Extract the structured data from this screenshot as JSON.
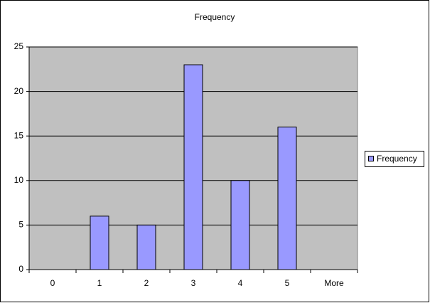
{
  "chart_data": {
    "type": "bar",
    "title": "Frequency",
    "categories": [
      "0",
      "1",
      "2",
      "3",
      "4",
      "5",
      "More"
    ],
    "series": [
      {
        "name": "Frequency",
        "color": "#9999ff",
        "values": [
          0,
          6,
          5,
          23,
          10,
          16,
          0
        ]
      }
    ],
    "ylim": [
      0,
      25
    ],
    "yticks": [
      0,
      5,
      10,
      15,
      20,
      25
    ],
    "grid": true,
    "legend": "right"
  }
}
